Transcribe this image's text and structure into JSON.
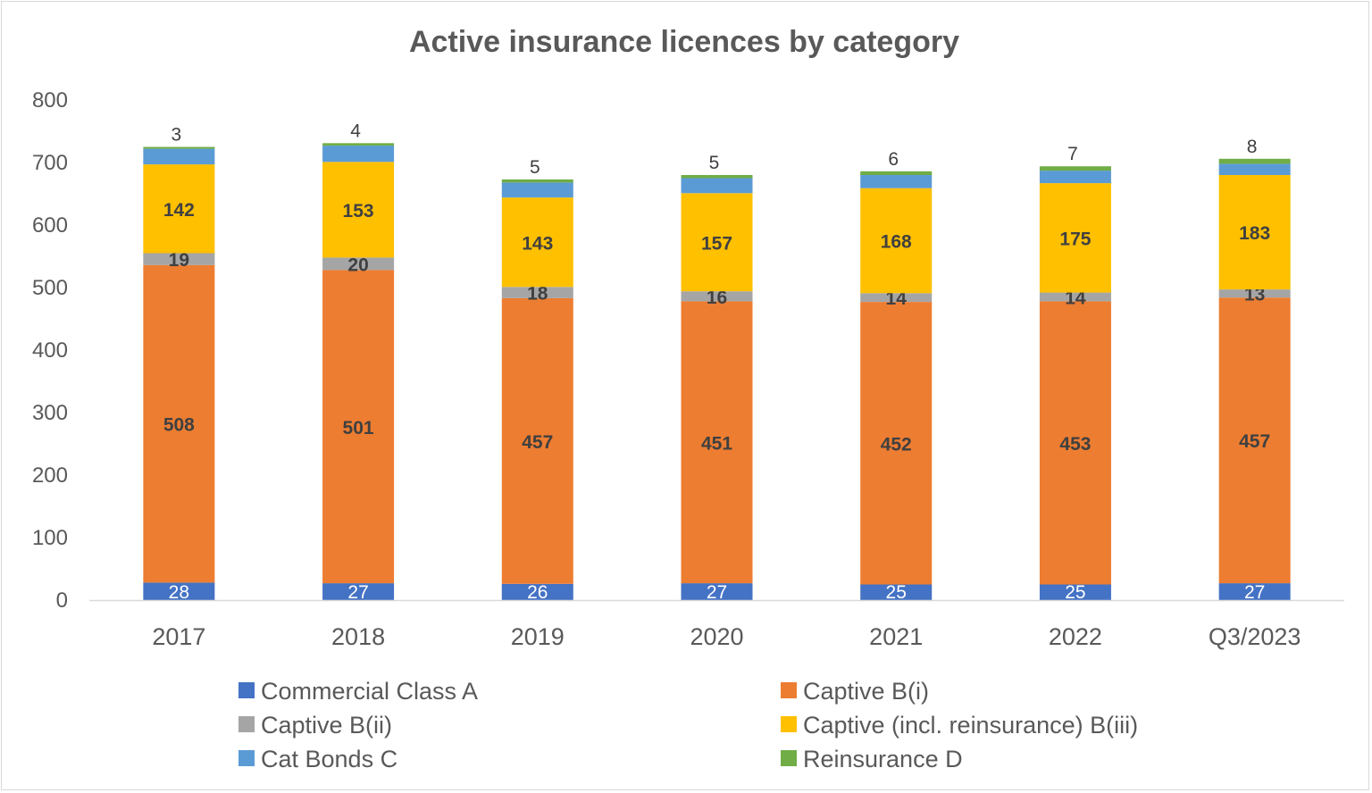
{
  "chart_data": {
    "type": "bar",
    "stacked": true,
    "title": "Active insurance licences by category",
    "categories": [
      "2017",
      "2018",
      "2019",
      "2020",
      "2021",
      "2022",
      "Q3/2023"
    ],
    "ylim": [
      0,
      800
    ],
    "yticks": [
      0,
      100,
      200,
      300,
      400,
      500,
      600,
      700,
      800
    ],
    "grid": false,
    "legend_position": "bottom",
    "series": [
      {
        "name": "Commercial Class A",
        "color": "#4472C4",
        "values": [
          28,
          27,
          26,
          27,
          25,
          25,
          27
        ],
        "labeled": true
      },
      {
        "name": "Captive B(i)",
        "color": "#ED7D31",
        "values": [
          508,
          501,
          457,
          451,
          452,
          453,
          457
        ],
        "labeled": true
      },
      {
        "name": "Captive B(ii)",
        "color": "#A5A5A5",
        "values": [
          19,
          20,
          18,
          16,
          14,
          14,
          13
        ],
        "labeled": true
      },
      {
        "name": "Captive (incl. reinsurance) B(iii)",
        "color": "#FFC000",
        "values": [
          142,
          153,
          143,
          157,
          168,
          175,
          183
        ],
        "labeled": true
      },
      {
        "name": "Cat Bonds C",
        "color": "#5B9BD5",
        "values": [
          25,
          26,
          24,
          24,
          21,
          20,
          18
        ],
        "labeled": false
      },
      {
        "name": "Reinsurance D",
        "color": "#70AD47",
        "values": [
          3,
          4,
          5,
          5,
          6,
          7,
          8
        ],
        "labeled": true
      }
    ]
  }
}
